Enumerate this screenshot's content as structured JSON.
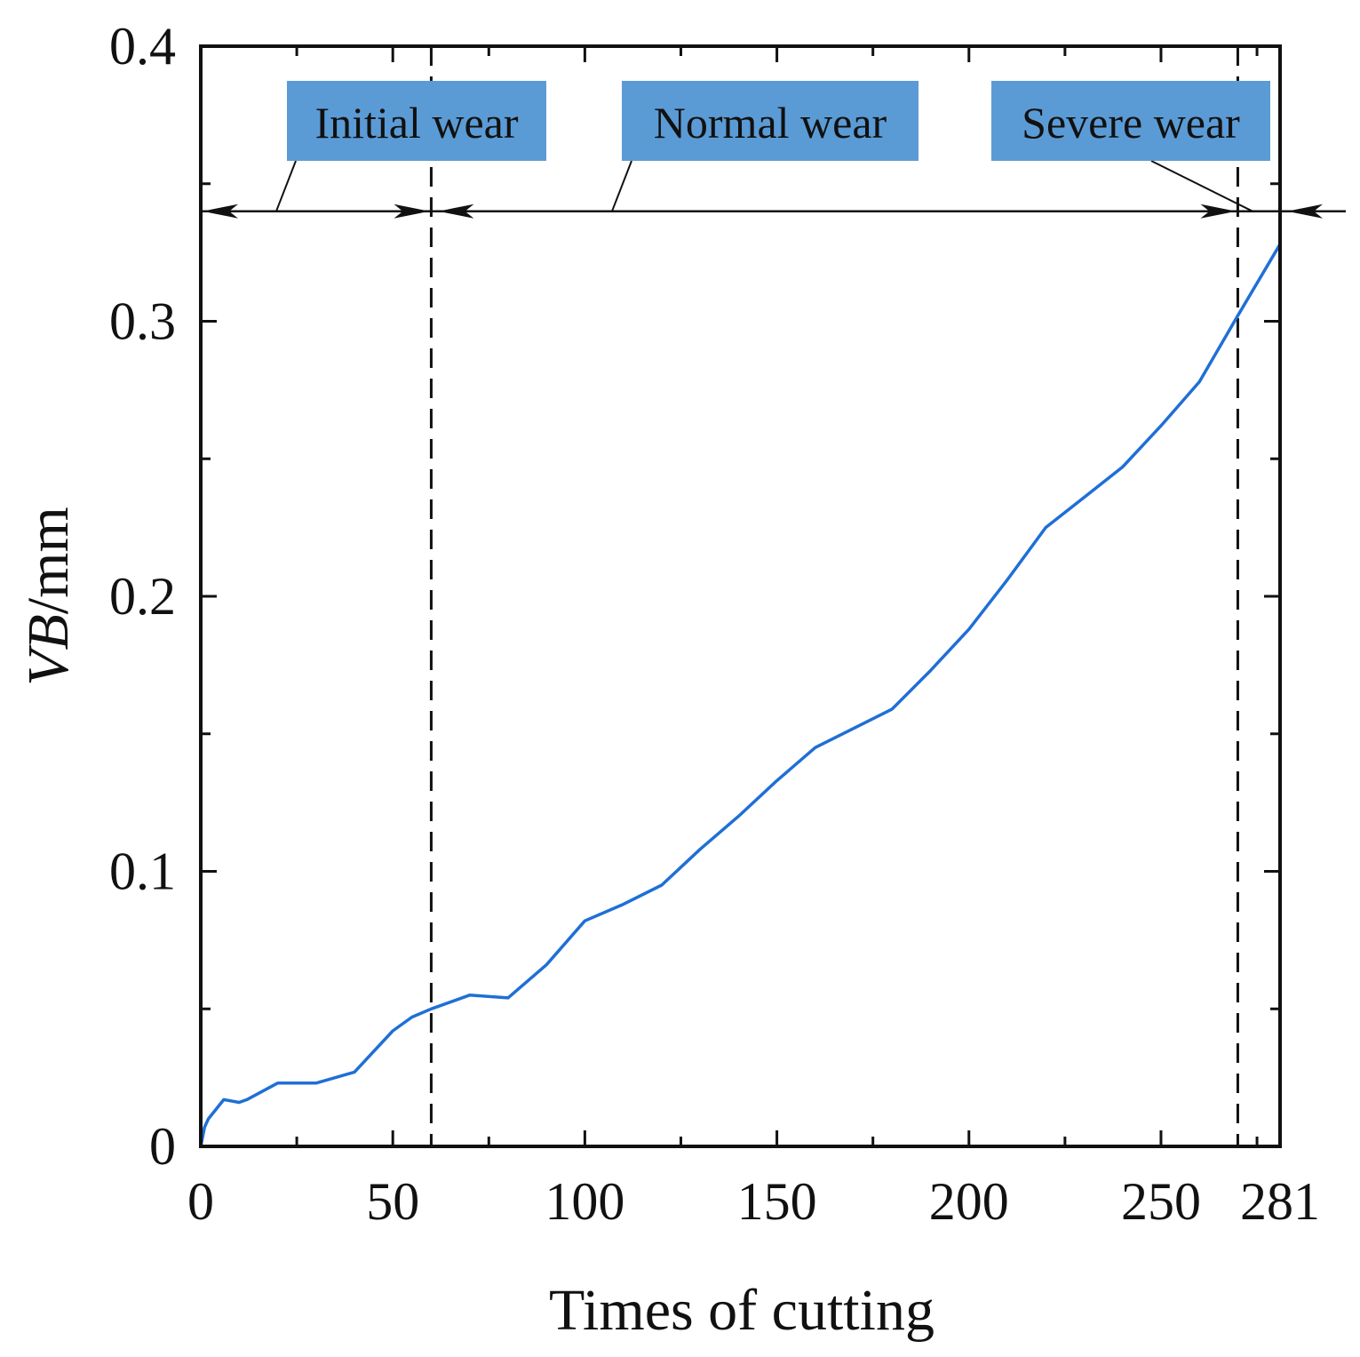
{
  "chart_data": {
    "type": "line",
    "title": "",
    "xlabel": "Times of cutting",
    "ylabel": "VB/mm",
    "xlim": [
      0,
      281
    ],
    "ylim": [
      0,
      0.4
    ],
    "x_ticks": [
      0,
      50,
      100,
      150,
      200,
      250,
      281
    ],
    "x_tick_labels": [
      "0",
      "50",
      "100",
      "150",
      "200",
      "250",
      "281"
    ],
    "y_ticks": [
      0,
      0.1,
      0.2,
      0.3,
      0.4
    ],
    "y_tick_labels": [
      "0",
      "0.1",
      "0.2",
      "0.3",
      "0.4"
    ],
    "line_color": "#1f6fd6",
    "label_box_color": "#5b9bd5",
    "series": [
      {
        "name": "VB",
        "x": [
          0,
          1,
          2,
          6,
          10,
          12,
          20,
          30,
          40,
          50,
          55,
          60,
          70,
          80,
          90,
          100,
          110,
          120,
          130,
          140,
          150,
          160,
          170,
          180,
          190,
          200,
          210,
          220,
          230,
          240,
          250,
          260,
          270,
          281
        ],
        "y": [
          0,
          0.007,
          0.01,
          0.017,
          0.016,
          0.017,
          0.023,
          0.023,
          0.027,
          0.042,
          0.047,
          0.05,
          0.055,
          0.054,
          0.066,
          0.082,
          0.088,
          0.095,
          0.108,
          0.12,
          0.133,
          0.145,
          0.152,
          0.159,
          0.173,
          0.188,
          0.206,
          0.225,
          0.236,
          0.247,
          0.262,
          0.278,
          0.302,
          0.328
        ]
      }
    ],
    "boundaries": [
      60,
      270
    ],
    "stages": [
      {
        "label": "Initial wear",
        "from": 0,
        "to": 60
      },
      {
        "label": "Normal wear",
        "from": 60,
        "to": 270
      },
      {
        "label": "Severe wear",
        "from": 270,
        "to": 281
      }
    ],
    "stage_arrow_y": 0.34
  }
}
